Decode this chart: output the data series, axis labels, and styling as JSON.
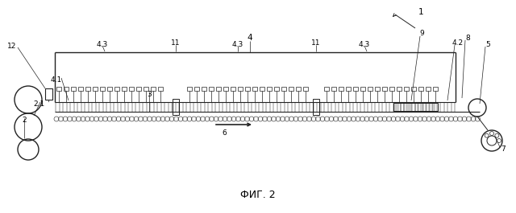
{
  "title": "ФИГ. 2",
  "bg_color": "#ffffff",
  "line_color": "#222222",
  "fig_width": 6.4,
  "fig_height": 2.65,
  "dpi": 100
}
